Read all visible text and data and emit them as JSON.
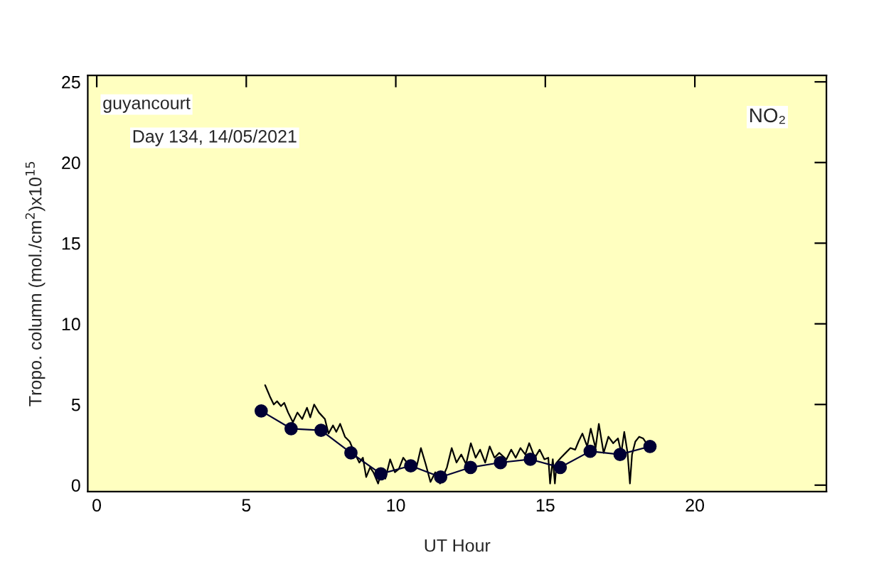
{
  "chart_data": {
    "type": "line",
    "xlabel": "UT Hour",
    "ylabel": "Tropo. column (mol./cm$^{2}$)x10$^{15}$",
    "annotations": [
      "guyancourt",
      "Day 134, 14/05/2021",
      "NO₂"
    ],
    "xlim": [
      -0.3,
      24.4
    ],
    "ylim": [
      -0.4,
      25.4
    ],
    "xticks": [
      0,
      5,
      10,
      15,
      20
    ],
    "yticks": [
      0,
      5,
      10,
      15,
      20,
      25
    ],
    "grid": false,
    "legend": false,
    "series": [
      {
        "color": "#000000",
        "marker": "none",
        "x": [
          5.63,
          5.79,
          5.92,
          6.03,
          6.16,
          6.27,
          6.4,
          6.56,
          6.71,
          6.87,
          7.03,
          7.14,
          7.27,
          7.43,
          7.63,
          7.75,
          7.9,
          8.01,
          8.14,
          8.3,
          8.46,
          8.62,
          8.78,
          8.9,
          9.01,
          9.14,
          9.25,
          9.41,
          9.54,
          9.65,
          9.81,
          9.97,
          10.1,
          10.25,
          10.37,
          10.52,
          10.68,
          10.84,
          11.0,
          11.16,
          11.32,
          11.48,
          11.71,
          11.87,
          12.03,
          12.19,
          12.35,
          12.51,
          12.67,
          12.82,
          12.99,
          13.14,
          13.3,
          13.46,
          13.7,
          13.86,
          14.01,
          14.17,
          14.33,
          14.46,
          14.65,
          14.81,
          14.97,
          15.1,
          15.16,
          15.25,
          15.32,
          15.38,
          15.52,
          15.68,
          15.84,
          16.0,
          16.11,
          16.24,
          16.4,
          16.52,
          16.68,
          16.79,
          16.95,
          17.11,
          17.27,
          17.43,
          17.54,
          17.64,
          17.75,
          17.83,
          17.9,
          18.01,
          18.14,
          18.27,
          18.38
        ],
        "values": [
          6.2,
          5.5,
          5.0,
          5.2,
          4.9,
          5.1,
          4.5,
          3.9,
          4.5,
          4.1,
          4.8,
          4.2,
          5.0,
          4.5,
          4.1,
          3.2,
          3.7,
          3.3,
          3.8,
          3.0,
          2.7,
          2.0,
          1.4,
          1.7,
          0.5,
          1.1,
          0.8,
          0.1,
          1.0,
          0.4,
          1.6,
          0.8,
          1.0,
          1.7,
          1.4,
          1.3,
          1.0,
          2.3,
          1.3,
          0.2,
          0.8,
          0.1,
          1.1,
          2.3,
          1.4,
          1.9,
          1.3,
          2.6,
          1.7,
          2.2,
          1.4,
          2.4,
          1.7,
          2.0,
          1.6,
          2.2,
          1.7,
          2.3,
          1.9,
          2.6,
          1.7,
          2.2,
          1.6,
          1.7,
          0.1,
          1.6,
          0.1,
          1.4,
          1.7,
          2.0,
          2.3,
          2.2,
          2.7,
          3.2,
          2.4,
          3.5,
          2.3,
          3.8,
          2.0,
          3.0,
          2.6,
          2.9,
          2.0,
          3.3,
          2.0,
          0.1,
          1.9,
          2.7,
          3.0,
          2.9,
          2.6
        ]
      },
      {
        "color": "#000033",
        "marker": "circle",
        "x": [
          5.5,
          6.5,
          7.5,
          8.5,
          9.5,
          10.5,
          11.5,
          12.5,
          13.5,
          14.5,
          15.5,
          16.5,
          17.5,
          18.5
        ],
        "values": [
          4.6,
          3.5,
          3.4,
          2.0,
          0.7,
          1.2,
          0.5,
          1.1,
          1.4,
          1.6,
          1.1,
          2.1,
          1.9,
          2.4
        ]
      }
    ]
  }
}
